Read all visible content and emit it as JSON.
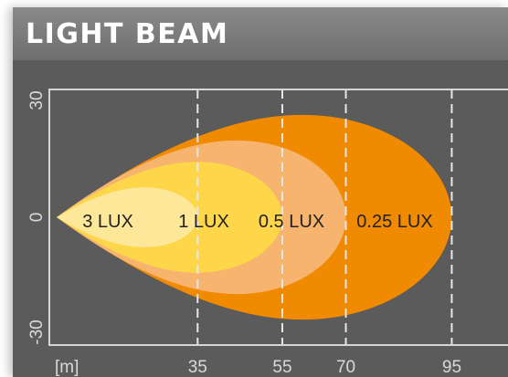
{
  "header": {
    "title": "LIGHT BEAM"
  },
  "colors": {
    "panel": "#5b5b5b",
    "plot_border": "#d6d6d6",
    "zone_025": "#f08a00",
    "zone_05": "#f6b46e",
    "zone_1": "#fdd64a",
    "zone_3": "#fde89a",
    "axis_text": "#d9d9d9"
  },
  "chart_data": {
    "type": "area",
    "title": "LIGHT BEAM",
    "xlabel": "[m]",
    "x_unit": "m",
    "xlim": [
      0,
      110
    ],
    "ylim": [
      -30,
      30
    ],
    "x_ticks": [
      35,
      55,
      70,
      95
    ],
    "y_ticks": [
      30,
      0,
      -30
    ],
    "grid": "dashed vertical lines at x ticks",
    "zones": [
      {
        "label": "0.25 LUX",
        "lux": 0.25,
        "reach": 95,
        "max_halfwidth": 24
      },
      {
        "label": "0.5 LUX",
        "lux": 0.5,
        "reach": 70,
        "max_halfwidth": 18
      },
      {
        "label": "1 LUX",
        "lux": 1,
        "reach": 55,
        "max_halfwidth": 13
      },
      {
        "label": "3 LUX",
        "lux": 3,
        "reach": 35,
        "max_halfwidth": 7
      }
    ]
  }
}
